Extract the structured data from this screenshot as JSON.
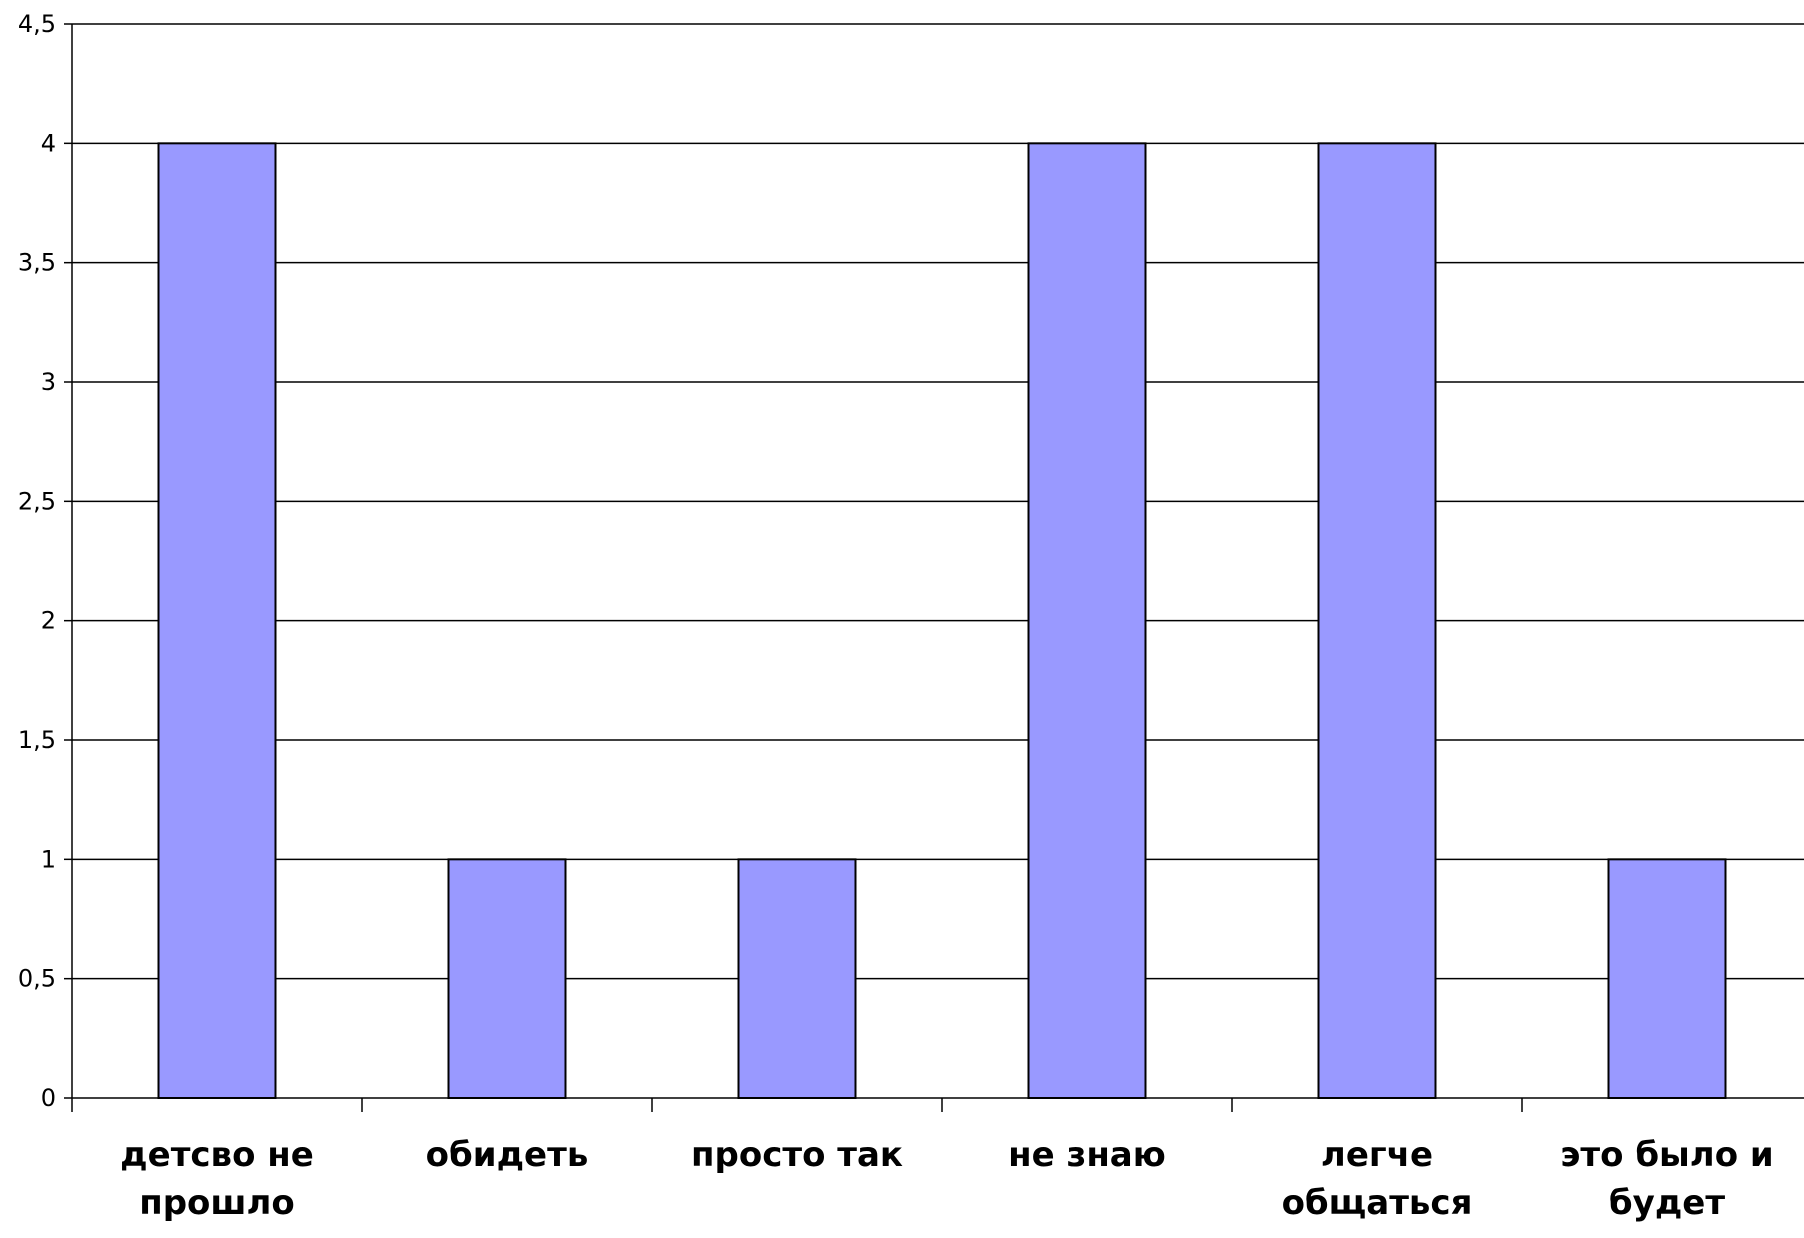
{
  "chart_data": {
    "type": "bar",
    "categories": [
      [
        "детсво не",
        "прошло"
      ],
      [
        "обидеть"
      ],
      [
        "просто так"
      ],
      [
        "не знаю"
      ],
      [
        "легче",
        "общаться"
      ],
      [
        "это было и",
        "будет"
      ]
    ],
    "values": [
      4,
      1,
      1,
      4,
      4,
      1
    ],
    "ylim": [
      0,
      4.5
    ],
    "yticks": [
      0,
      0.5,
      1,
      1.5,
      2,
      2.5,
      3,
      3.5,
      4,
      4.5
    ],
    "ytick_labels": [
      "0",
      "0,5",
      "1",
      "1,5",
      "2",
      "2,5",
      "3",
      "3,5",
      "4",
      "4,5"
    ],
    "grid": true,
    "legend": "none",
    "title": "",
    "xlabel": "",
    "ylabel": "",
    "colors": {
      "bar_fill": "#9999ff",
      "bar_stroke": "#000000",
      "grid": "#000000",
      "axis": "#000000",
      "background": "#ffffff"
    }
  }
}
